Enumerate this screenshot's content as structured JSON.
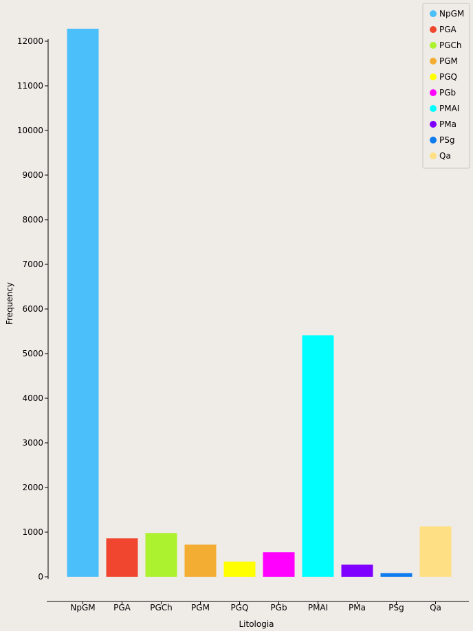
{
  "chart_data": {
    "type": "bar",
    "title": "",
    "xlabel": "Litologia",
    "ylabel": "Frequency",
    "ylim": [
      0,
      12000
    ],
    "yticks": [
      0,
      1000,
      2000,
      3000,
      4000,
      5000,
      6000,
      7000,
      8000,
      9000,
      10000,
      11000,
      12000
    ],
    "grid": false,
    "legend_position": "top-right",
    "categories": [
      "NpGM",
      "PGA",
      "PGCh",
      "PGM",
      "PGQ",
      "PGb",
      "PMAI",
      "PMa",
      "PSg",
      "Qa"
    ],
    "values": [
      12280,
      860,
      980,
      720,
      340,
      550,
      5410,
      270,
      80,
      1130
    ],
    "colors": [
      "#4bbff9",
      "#f0462f",
      "#acf22e",
      "#f4ad33",
      "#ffff00",
      "#ff00ff",
      "#00ffff",
      "#8000ff",
      "#0f7cee",
      "#ffdf83"
    ]
  }
}
